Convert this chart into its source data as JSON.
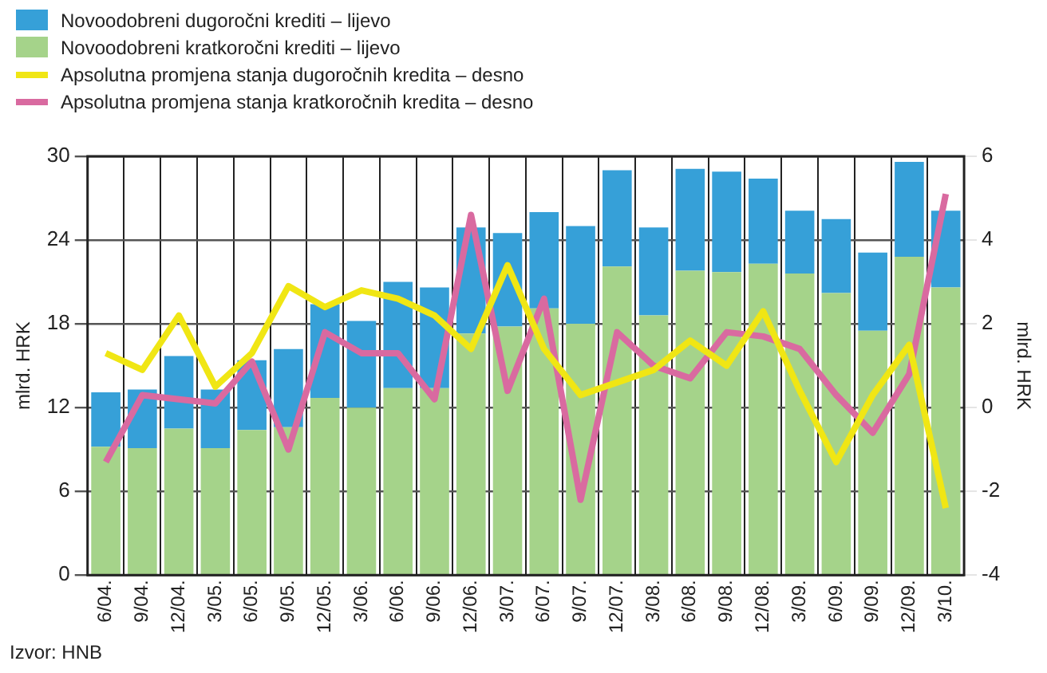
{
  "chart_data": {
    "type": "bar",
    "stacked": true,
    "categories": [
      "6/04.",
      "9/04.",
      "12/04.",
      "3/05.",
      "6/05.",
      "9/05.",
      "12/05.",
      "3/06.",
      "6/06.",
      "9/06.",
      "12/06.",
      "3/07.",
      "6/07.",
      "9/07.",
      "12/07.",
      "3/08.",
      "6/08.",
      "9/08.",
      "12/08.",
      "3/09.",
      "6/09.",
      "9/09.",
      "12/09.",
      "3/10."
    ],
    "series": [
      {
        "name": "Novoodobreni kratkoročni krediti – lijevo",
        "color": "#a5d38a",
        "values": [
          9.2,
          9.1,
          10.5,
          9.1,
          10.4,
          10.6,
          12.7,
          12.0,
          13.4,
          13.4,
          17.3,
          17.8,
          19.1,
          18.0,
          22.1,
          18.6,
          21.8,
          21.7,
          22.3,
          21.6,
          20.2,
          17.5,
          22.8,
          20.6
        ]
      },
      {
        "name": "Novoodobreni dugoročni krediti – lijevo",
        "color": "#36a0d8",
        "values": [
          3.9,
          4.2,
          5.2,
          4.2,
          5.0,
          5.6,
          6.7,
          6.2,
          7.6,
          7.2,
          7.6,
          6.7,
          6.9,
          7.0,
          6.9,
          6.3,
          7.3,
          7.2,
          6.1,
          4.5,
          5.3,
          5.6,
          6.8,
          5.5
        ]
      },
      {
        "name": "Apsolutna promjena stanja dugoročnih kredita – desno",
        "type": "line",
        "axis": "y2",
        "color": "#f0e614",
        "values": [
          1.3,
          0.9,
          2.2,
          0.5,
          1.3,
          2.9,
          2.4,
          2.8,
          2.6,
          2.2,
          1.4,
          3.4,
          1.4,
          0.3,
          0.6,
          0.9,
          1.6,
          1.0,
          2.3,
          0.4,
          -1.3,
          0.3,
          1.5,
          -2.4
        ]
      },
      {
        "name": "Apsolutna promjena stanja kratkoročnih kredita – desno",
        "type": "line",
        "axis": "y2",
        "color": "#d96aa0",
        "values": [
          -1.3,
          0.3,
          0.2,
          0.1,
          1.1,
          -1.0,
          1.8,
          1.3,
          1.3,
          0.2,
          4.6,
          0.4,
          2.6,
          -2.2,
          1.8,
          1.0,
          0.7,
          1.8,
          1.7,
          1.4,
          0.3,
          -0.6,
          0.8,
          5.1
        ]
      }
    ],
    "ylabel": "mlrd. HRK",
    "y2label": "mlrd. HRK",
    "ylim": [
      0,
      30
    ],
    "yticks": [
      0,
      6,
      12,
      18,
      24,
      30
    ],
    "y2lim": [
      -4,
      6
    ],
    "y2ticks": [
      -4,
      -2,
      0,
      2,
      4,
      6
    ],
    "grid": true,
    "legend": "top left",
    "marker": "none",
    "line_style": "solid",
    "annotations": [
      "Izvor: HNB"
    ]
  }
}
